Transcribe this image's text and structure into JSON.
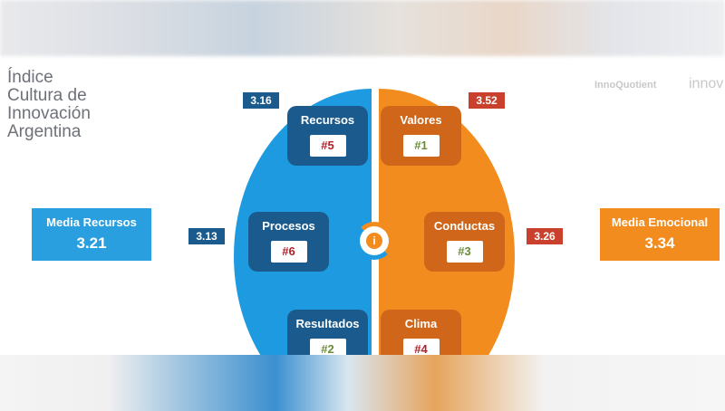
{
  "title": [
    "Índice",
    "Cultura de",
    "Innovación",
    "Argentina"
  ],
  "logos": [
    "InnoQuotient",
    "innov"
  ],
  "left": {
    "media_label": "Media Recursos",
    "media_value": "3.21",
    "color": "#1e9be0",
    "boxes": [
      {
        "label": "Recursos",
        "rank": "#5",
        "score": "3.16"
      },
      {
        "label": "Procesos",
        "rank": "#6",
        "score": "3.13"
      },
      {
        "label": "Resultados",
        "rank": "#2"
      }
    ]
  },
  "right": {
    "media_label": "Media Emocional",
    "media_value": "3.34",
    "color": "#f28c1e",
    "boxes": [
      {
        "label": "Valores",
        "rank": "#1",
        "score": "3.52"
      },
      {
        "label": "Conductas",
        "rank": "#3",
        "score": "3.26"
      },
      {
        "label": "Clima",
        "rank": "#4"
      }
    ]
  },
  "center_icon": "info-icon"
}
